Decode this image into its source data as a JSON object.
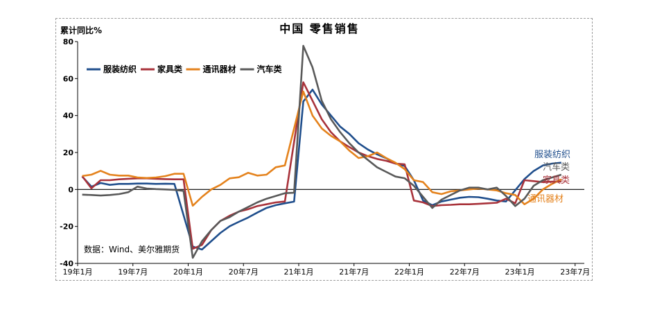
{
  "chart_data": {
    "type": "line",
    "title": "中国 零售销售",
    "ylabel": "累计同比%",
    "source": "数据：Wind、美尔雅期货",
    "ylim": [
      -40,
      80
    ],
    "yticks": [
      "80",
      "60",
      "40",
      "20",
      "0",
      "-20",
      "-40"
    ],
    "xticks": [
      "19年1月",
      "19年7月",
      "20年1月",
      "20年7月",
      "21年1月",
      "21年7月",
      "22年1月",
      "22年7月",
      "23年1月",
      "23年7月"
    ],
    "x": [
      "2019-01",
      "2019-02",
      "2019-03",
      "2019-04",
      "2019-05",
      "2019-06",
      "2019-07",
      "2019-08",
      "2019-09",
      "2019-10",
      "2019-11",
      "2019-12",
      "2020-01",
      "2020-02",
      "2020-03",
      "2020-04",
      "2020-05",
      "2020-06",
      "2020-07",
      "2020-08",
      "2020-09",
      "2020-10",
      "2020-11",
      "2020-12",
      "2021-01",
      "2021-02",
      "2021-03",
      "2021-04",
      "2021-05",
      "2021-06",
      "2021-07",
      "2021-08",
      "2021-09",
      "2021-10",
      "2021-11",
      "2021-12",
      "2022-01",
      "2022-02",
      "2022-03",
      "2022-04",
      "2022-05",
      "2022-06",
      "2022-07",
      "2022-08",
      "2022-09",
      "2022-10",
      "2022-11",
      "2022-12",
      "2023-01",
      "2023-02",
      "2023-03",
      "2023-04",
      "2023-05"
    ],
    "series": [
      {
        "name": "服装纺织",
        "color": "#1f4e8c",
        "values": [
          7.0,
          1.5,
          3.5,
          2.5,
          3.0,
          3.0,
          3.2,
          3.2,
          3.0,
          3.1,
          3.0,
          null,
          -30.9,
          -32.5,
          -28.0,
          -23.5,
          -19.9,
          -17.5,
          -15.2,
          -12.5,
          -10.0,
          -8.5,
          -7.5,
          -6.6,
          47.6,
          54.0,
          46.0,
          40.0,
          34.0,
          30.0,
          25.0,
          21.6,
          19.0,
          16.9,
          14.0,
          12.7,
          5.0,
          -6.0,
          -8.5,
          -6.5,
          -5.5,
          -4.5,
          -4.0,
          -4.2,
          -5.0,
          -6.0,
          -6.5,
          null,
          5.6,
          10.0,
          13.0,
          14.0,
          14.5
        ]
      },
      {
        "name": "家具类",
        "color": "#a8323a",
        "values": [
          7.2,
          0.6,
          5.0,
          5.0,
          5.5,
          5.8,
          6.0,
          6.0,
          5.8,
          5.6,
          5.5,
          5.5,
          -32.1,
          -30.0,
          -22.0,
          -17.0,
          -14.2,
          -12.0,
          -10.7,
          -9.0,
          -8.0,
          -7.0,
          -6.5,
          null,
          58.0,
          48.0,
          38.0,
          31.0,
          26.0,
          22.9,
          20.0,
          18.0,
          16.5,
          15.5,
          14.0,
          13.6,
          -6.0,
          -7.0,
          -9.0,
          -8.5,
          -8.3,
          -8.0,
          -8.0,
          -7.8,
          -7.5,
          -7.2,
          -5.0,
          -7.5,
          5.0,
          4.5,
          4.0,
          4.2,
          4.3
        ]
      },
      {
        "name": "通讯器材",
        "color": "#e4821c",
        "values": [
          7.3,
          8.0,
          10.1,
          8.0,
          7.5,
          7.5,
          6.5,
          6.2,
          6.5,
          7.2,
          8.5,
          8.5,
          -8.8,
          -4.0,
          0.0,
          2.5,
          6.0,
          6.6,
          9.0,
          7.5,
          8.0,
          12.0,
          13.0,
          null,
          53.0,
          40.0,
          33.0,
          29.0,
          26.0,
          21.0,
          17.0,
          18.0,
          20.0,
          17.0,
          14.5,
          11.0,
          5.0,
          4.0,
          -1.5,
          -2.5,
          -1.0,
          -0.5,
          0.0,
          0.5,
          0.0,
          -0.5,
          -2.0,
          -3.0,
          -8.0,
          -5.0,
          0.0,
          3.0,
          5.5
        ]
      },
      {
        "name": "汽车类",
        "color": "#595959",
        "values": [
          -2.8,
          -3.0,
          -3.3,
          -3.0,
          -2.5,
          -1.5,
          1.5,
          0.5,
          0.2,
          0.0,
          -0.2,
          -0.8,
          -37.0,
          -28.0,
          -22.0,
          -17.0,
          -15.0,
          -12.0,
          -9.5,
          -7.0,
          -5.0,
          -3.5,
          -2.0,
          -1.8,
          77.7,
          66.0,
          48.0,
          38.0,
          31.0,
          25.0,
          20.0,
          16.0,
          12.0,
          9.5,
          7.0,
          6.1,
          2.0,
          -4.0,
          -10.0,
          -5.5,
          -3.0,
          -0.5,
          1.0,
          1.0,
          0.0,
          1.0,
          -3.5,
          -9.0,
          -5.0,
          2.0,
          5.0,
          6.5,
          8.0
        ]
      }
    ],
    "end_labels": [
      "服装纺织",
      "汽车类",
      "家具类",
      "通讯器材"
    ],
    "legend": "top-left",
    "grid": false
  }
}
